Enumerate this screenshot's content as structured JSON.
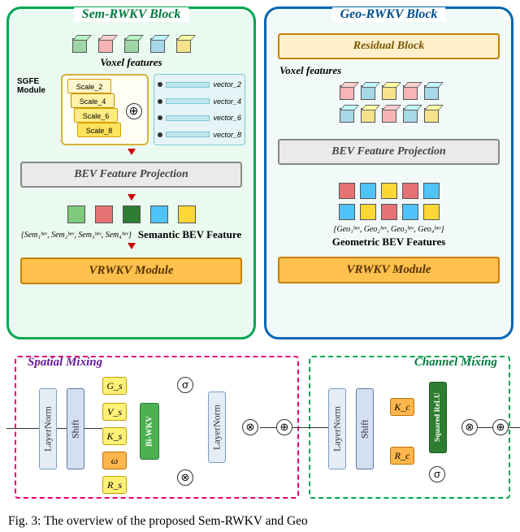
{
  "sem": {
    "title": "Sem-RWKV Block",
    "voxel_label": "Voxel features",
    "voxel_colors": [
      "#9ed6a7",
      "#f7b4b4",
      "#9ed6a7",
      "#a8d8e8",
      "#f7e28c"
    ],
    "sgfe_label": "SGFE\nModule",
    "scales": [
      "Scale_2",
      "Scale_4",
      "Scale_6",
      "Scale_8"
    ],
    "vectors": [
      "vector_2",
      "vector_4",
      "vector_6",
      "vector_8"
    ],
    "bev_proj": "BEV Feature Projection",
    "square_colors": [
      "#7fc97f",
      "#e57373",
      "#2e7d32",
      "#4fc3f7",
      "#fdd835"
    ],
    "feat_math": "{Sem₁ᵇᵉᵛ, Sem₂ᵇᵉᵛ, Sem₃ᵇᵉᵛ, Sem₄ᵇᵉᵛ}",
    "feat_name": "Semantic BEV Feature",
    "vrwkv": "VRWKV Module"
  },
  "geo": {
    "title": "Geo-RWKV Block",
    "residual": "Residual Block",
    "voxel_label": "Voxel features",
    "voxel_row1": [
      "#f7b4b4",
      "#a8d8e8",
      "#f7e28c",
      "#f7b4b4",
      "#a8d8e8"
    ],
    "voxel_row2": [
      "#a8d8e8",
      "#f7e28c",
      "#f7b4b4",
      "#a8d8e8",
      "#f7e28c"
    ],
    "bev_proj": "BEV Feature Projection",
    "square_row1": [
      "#e57373",
      "#4fc3f7",
      "#fdd835",
      "#e57373",
      "#4fc3f7"
    ],
    "square_row2": [
      "#4fc3f7",
      "#fdd835",
      "#e57373",
      "#4fc3f7",
      "#fdd835"
    ],
    "feat_math": "{Geo₁ᵇᵉᵛ, Geo₂ᵇᵉᵛ, Geo₃ᵇᵉᵛ, Geo₄ᵇᵉᵛ}",
    "feat_name": "Geometric BEV Features",
    "vrwkv": "VRWKV Module"
  },
  "mix": {
    "spatial_title": "Spatial Mixing",
    "channel_title": "Channel Mixing",
    "ln": "LayerNorm",
    "shift": "Shift",
    "biwkv": "Bi-WKV",
    "srelu": "Squared ReLU",
    "G": "G_s",
    "V": "V_s",
    "K": "K_s",
    "w": "ω",
    "R": "R_s",
    "Kc": "K_c",
    "Rc": "R_c"
  },
  "caption": "Fig. 3: The overview of the proposed Sem-RWKV and Geo"
}
